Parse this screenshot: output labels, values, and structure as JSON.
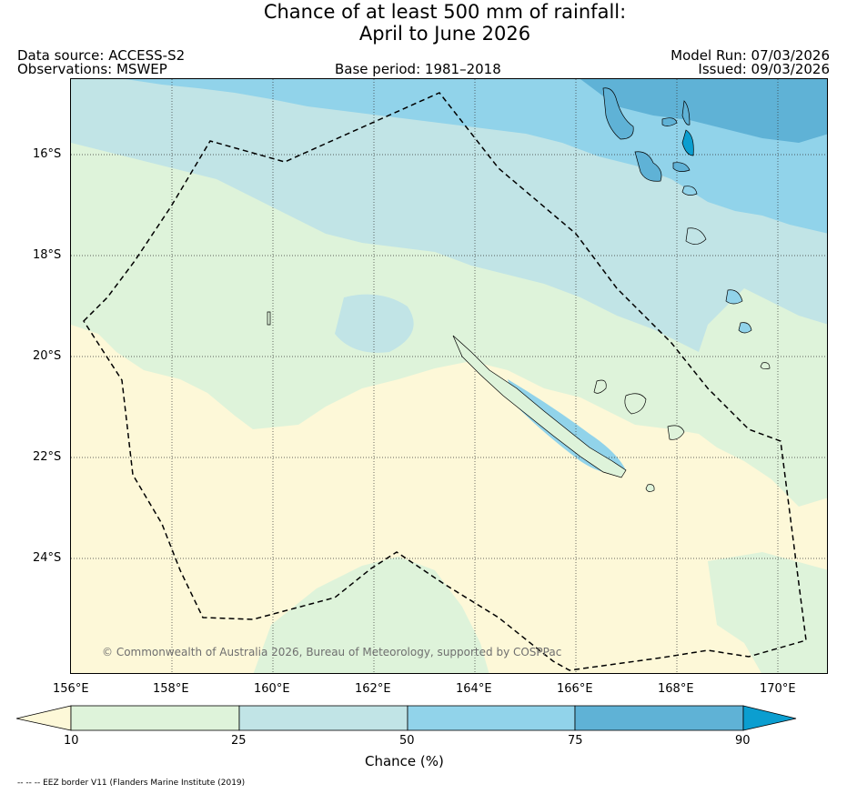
{
  "header": {
    "title_line1": "Chance of at least 500 mm of rainfall:",
    "title_line2": "April to June 2026",
    "data_source": "Data source: ACCESS-S2",
    "observations": "Observations: MSWEP",
    "base_period": "Base period: 1981–2018",
    "model_run": "Model Run: 07/03/2026",
    "issued": "Issued: 09/03/2026"
  },
  "map": {
    "region": "New Caledonia and Vanuatu, Southwest Pacific",
    "copyright": "© Commonwealth of Australia 2026, Bureau of Meteorology, supported by COSPPac",
    "lon_ticks": [
      "156°E",
      "158°E",
      "160°E",
      "162°E",
      "164°E",
      "166°E",
      "168°E",
      "170°E"
    ],
    "lat_ticks": [
      "16°S",
      "18°S",
      "20°S",
      "22°S",
      "24°S"
    ],
    "gridlines": true,
    "eez_border_style": "dashed black"
  },
  "colorbar": {
    "bounds": [
      "10",
      "25",
      "50",
      "75",
      "90"
    ],
    "label": "Chance (%)",
    "colors": {
      "below_10": "#fdf8d8",
      "c10_25": "#def3da",
      "c25_50": "#c1e4e6",
      "c50_75": "#91d3ea",
      "c75_90": "#5fb2d6",
      "above_90": "#0b9ed0"
    }
  },
  "footnote": "-- -- -- EEZ border V11 (Flanders Marine Institute (2019)"
}
